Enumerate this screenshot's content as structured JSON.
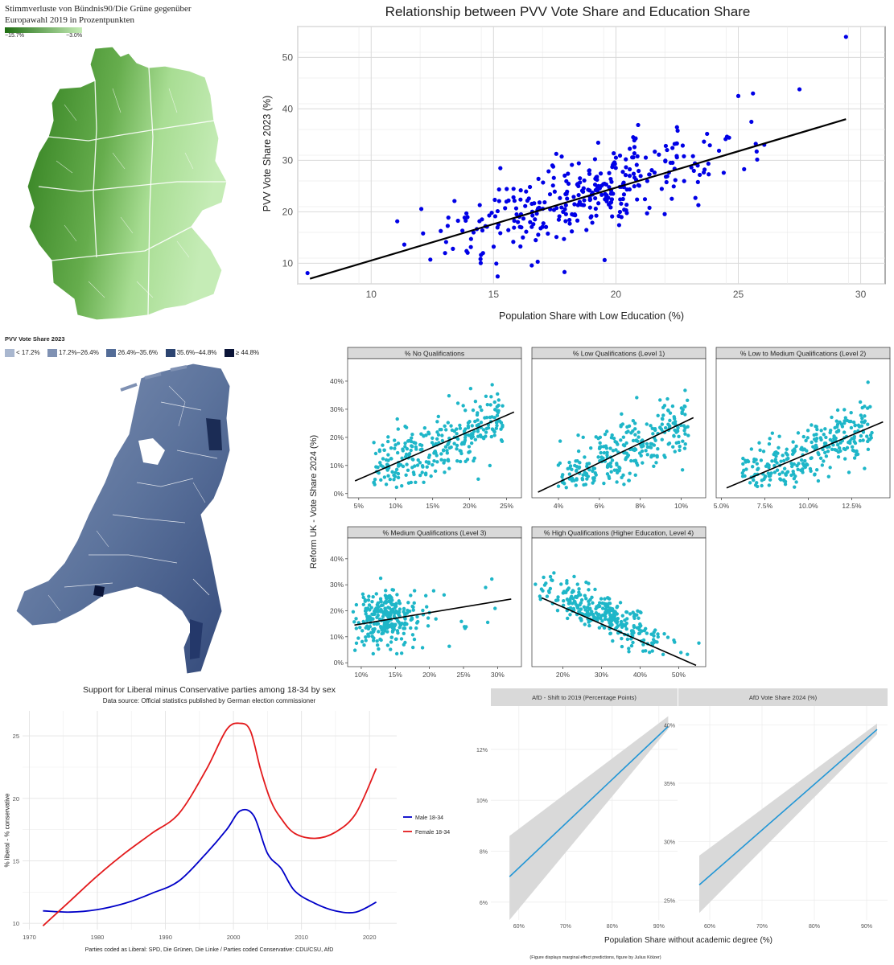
{
  "germany_map": {
    "title_line1": "Stimmverluste von Bündnis90/Die Grüne gegenüber",
    "title_line2": "Europawahl 2019 in Prozentpunkten",
    "legend_min": "−15.7%",
    "legend_max": "−3.0%",
    "color_dark": "#1f6e12",
    "color_light": "#c5ecb6"
  },
  "netherlands_map": {
    "title": "PVV Vote Share 2023",
    "legend": [
      {
        "label": "< 17.2%",
        "color": "#a9b7cf"
      },
      {
        "label": "17.2%–26.4%",
        "color": "#7f91b3"
      },
      {
        "label": "26.4%–35.6%",
        "color": "#536c97"
      },
      {
        "label": "35.6%–44.8%",
        "color": "#2c4470"
      },
      {
        "label": "≥ 44.8%",
        "color": "#0b1538"
      }
    ]
  },
  "chart_data": [
    {
      "type": "scatter",
      "id": "pvv",
      "title": "Relationship between PVV Vote Share and Education Share",
      "xlabel": "Population Share with Low Education (%)",
      "ylabel": "PVV Vote Share 2023 (%)",
      "xlim": [
        7,
        31
      ],
      "ylim": [
        6,
        56
      ],
      "xticks": [
        10,
        15,
        20,
        25,
        30
      ],
      "yticks": [
        10,
        20,
        30,
        40,
        50
      ],
      "point_color": "#0000e6",
      "n_points": 340,
      "fit": {
        "x1": 7.5,
        "y1": 7.0,
        "x2": 29.4,
        "y2": 38.0
      },
      "highlights": [
        [
          29.4,
          54.0
        ],
        [
          7.4,
          8.1
        ],
        [
          27.5,
          43.8
        ],
        [
          25.6,
          43.0
        ],
        [
          25.0,
          42.5
        ],
        [
          17.9,
          8.3
        ]
      ]
    },
    {
      "type": "scatter",
      "id": "reform",
      "ylabel": "Reform UK - Vote Share 2024 (%)",
      "point_color": "#1eb6c8",
      "panels": [
        {
          "title": "% No Qualifications",
          "xlim": [
            3.5,
            27
          ],
          "xticks": [
            5,
            10,
            15,
            20,
            25
          ],
          "xtick_labels": [
            "5%",
            "10%",
            "15%",
            "20%",
            "25%"
          ],
          "fit": [
            [
              4.5,
              4.5
            ],
            [
              26,
              29
            ]
          ],
          "n_points": 300
        },
        {
          "title": "% Low Qualifications (Level 1)",
          "xlim": [
            2.7,
            11.2
          ],
          "xticks": [
            4,
            6,
            8,
            10
          ],
          "xtick_labels": [
            "4%",
            "6%",
            "8%",
            "10%"
          ],
          "fit": [
            [
              3.0,
              0.5
            ],
            [
              10.6,
              27
            ]
          ],
          "n_points": 300
        },
        {
          "title": "% Low to Medium Qualifications (Level 2)",
          "xlim": [
            4.7,
            14.7
          ],
          "xticks": [
            5.0,
            7.5,
            10.0,
            12.5
          ],
          "xtick_labels": [
            "5.0%",
            "7.5%",
            "10.0%",
            "12.5%"
          ],
          "fit": [
            [
              5.3,
              2.0
            ],
            [
              14.3,
              25.5
            ]
          ],
          "n_points": 300
        },
        {
          "title": "% Medium Qualifications (Level 3)",
          "xlim": [
            8,
            33.5
          ],
          "xticks": [
            10,
            15,
            20,
            25,
            30
          ],
          "xtick_labels": [
            "10%",
            "15%",
            "20%",
            "25%",
            "30%"
          ],
          "fit": [
            [
              9.0,
              14.5
            ],
            [
              32.0,
              24.5
            ]
          ],
          "n_points": 300
        },
        {
          "title": "% High Qualifications (Higher Education, Level 4)",
          "xlim": [
            12,
            57
          ],
          "xticks": [
            20,
            30,
            40,
            50
          ],
          "xtick_labels": [
            "20%",
            "30%",
            "40%",
            "50%"
          ],
          "fit": [
            [
              14.5,
              25
            ],
            [
              54.5,
              -1
            ]
          ],
          "n_points": 300
        }
      ],
      "ylim": [
        -1.5,
        48
      ],
      "yticks": [
        0,
        10,
        20,
        30,
        40
      ],
      "ytick_labels": [
        "0%",
        "10%",
        "20%",
        "30%",
        "40%"
      ]
    },
    {
      "type": "line",
      "id": "liberal",
      "title": "Support for Liberal minus Conservative parties among 18-34 by sex",
      "subtitle": "Data source: Official statistics published by German election commissioner",
      "ylabel": "% liberal - % conservative",
      "caption": "Parties coded as Liberal: SPD, Die Grünen, Die Linke / Parties coded Conservative: CDU/CSU, AfD",
      "xlim": [
        1969,
        2024
      ],
      "ylim": [
        9.5,
        27
      ],
      "xticks": [
        1970,
        1980,
        1990,
        2000,
        2010,
        2020
      ],
      "yticks": [
        10,
        15,
        20,
        25
      ],
      "series": [
        {
          "name": "Male 18-34",
          "color": "#0000c8",
          "x": [
            1972,
            1976,
            1980,
            1984,
            1988,
            1992,
            1996,
            1999,
            2001,
            2003,
            2005,
            2007,
            2009,
            2012,
            2015,
            2018,
            2021
          ],
          "y": [
            11.0,
            10.9,
            11.1,
            11.6,
            12.4,
            13.4,
            15.6,
            17.5,
            19.0,
            18.6,
            15.6,
            14.4,
            12.6,
            11.6,
            11.0,
            10.9,
            11.7
          ]
        },
        {
          "name": "Female 18-34",
          "color": "#e31a1c",
          "x": [
            1972,
            1976,
            1980,
            1984,
            1988,
            1992,
            1996,
            1999,
            2001,
            2002.5,
            2004,
            2005.5,
            2007,
            2009,
            2012,
            2015,
            2018,
            2021
          ],
          "y": [
            9.8,
            11.8,
            13.8,
            15.6,
            17.2,
            18.8,
            22.3,
            25.5,
            26.0,
            25.4,
            22.3,
            19.8,
            18.4,
            17.2,
            16.8,
            17.3,
            18.8,
            22.4
          ]
        }
      ]
    },
    {
      "type": "area",
      "id": "afd",
      "xlabel": "Population Share without academic degree (%)",
      "caption": "(Figure displays marginal effect predictions, figure by Julius Kölzer)",
      "line_color": "#2196d6",
      "band_color": "#d9d9d9",
      "panels": [
        {
          "title": "AfD - Shift to 2019 (Percentage Points)",
          "xlim": [
            54,
            94
          ],
          "ylim": [
            5.3,
            13.7
          ],
          "xticks": [
            60,
            70,
            80,
            90
          ],
          "xtick_labels": [
            "60%",
            "70%",
            "80%",
            "90%"
          ],
          "yticks": [
            6,
            8,
            10,
            12
          ],
          "ytick_labels": [
            "6%",
            "8%",
            "10%",
            "12%"
          ],
          "x": [
            58,
            92
          ],
          "y": [
            7.0,
            12.9
          ],
          "lower": [
            5.3,
            12.8
          ],
          "upper": [
            8.6,
            13.3
          ]
        },
        {
          "title": "AfD Vote Share 2024 (%)",
          "xlim": [
            54,
            94
          ],
          "ylim": [
            23.3,
            41.6
          ],
          "xticks": [
            60,
            70,
            80,
            90
          ],
          "xtick_labels": [
            "60%",
            "70%",
            "80%",
            "90%"
          ],
          "yticks": [
            25,
            30,
            35,
            40
          ],
          "ytick_labels": [
            "25%",
            "30%",
            "35%",
            "40%"
          ],
          "x": [
            58,
            92
          ],
          "y": [
            26.3,
            39.6
          ],
          "lower": [
            23.9,
            39.2
          ],
          "upper": [
            28.8,
            40.1
          ]
        }
      ]
    }
  ]
}
